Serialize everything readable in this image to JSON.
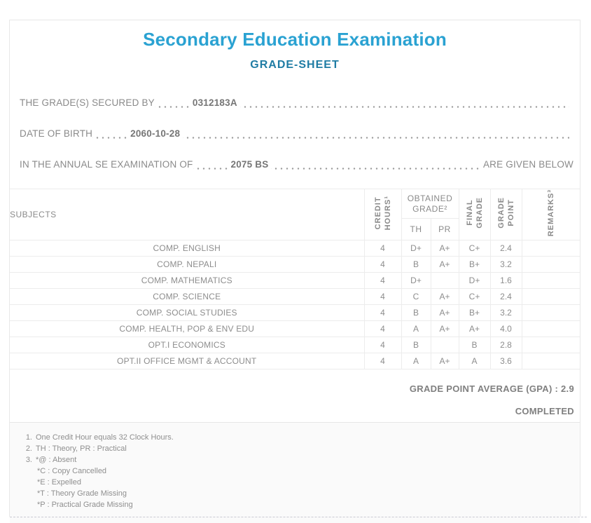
{
  "header": {
    "title": "Secondary Education Examination",
    "subtitle": "GRADE-SHEET"
  },
  "student_info": [
    {
      "label": "THE GRADE(S) SECURED BY",
      "value": "0312183A",
      "suffix": ""
    },
    {
      "label": "DATE OF BIRTH",
      "value": "2060-10-28",
      "suffix": ""
    },
    {
      "label": "IN THE ANNUAL SE EXAMINATION OF",
      "value": "2075 BS",
      "suffix": "ARE GIVEN BELOW"
    }
  ],
  "table": {
    "headers": {
      "subjects": "SUBJECTS",
      "credit_hours": "CREDIT\nHOURS¹",
      "obtained_grade": "OBTAINED\nGRADE²",
      "th": "TH",
      "pr": "PR",
      "final_grade": "FINAL\nGRADE",
      "grade_point": "GRADE\nPOINT",
      "remarks": "REMARKS³"
    },
    "rows": [
      {
        "subject": "COMP. ENGLISH",
        "credit": "4",
        "th": "D+",
        "pr": "A+",
        "final": "C+",
        "gp": "2.4",
        "remarks": ""
      },
      {
        "subject": "COMP. NEPALI",
        "credit": "4",
        "th": "B",
        "pr": "A+",
        "final": "B+",
        "gp": "3.2",
        "remarks": ""
      },
      {
        "subject": "COMP. MATHEMATICS",
        "credit": "4",
        "th": "D+",
        "pr": "",
        "final": "D+",
        "gp": "1.6",
        "remarks": ""
      },
      {
        "subject": "COMP. SCIENCE",
        "credit": "4",
        "th": "C",
        "pr": "A+",
        "final": "C+",
        "gp": "2.4",
        "remarks": ""
      },
      {
        "subject": "COMP. SOCIAL STUDIES",
        "credit": "4",
        "th": "B",
        "pr": "A+",
        "final": "B+",
        "gp": "3.2",
        "remarks": ""
      },
      {
        "subject": "COMP. HEALTH, POP & ENV EDU",
        "credit": "4",
        "th": "A",
        "pr": "A+",
        "final": "A+",
        "gp": "4.0",
        "remarks": ""
      },
      {
        "subject": "OPT.I ECONOMICS",
        "credit": "4",
        "th": "B",
        "pr": "",
        "final": "B",
        "gp": "2.8",
        "remarks": ""
      },
      {
        "subject": "OPT.II OFFICE MGMT & ACCOUNT",
        "credit": "4",
        "th": "A",
        "pr": "A+",
        "final": "A",
        "gp": "3.6",
        "remarks": ""
      }
    ]
  },
  "summary": {
    "gpa_label": "GRADE POINT AVERAGE (GPA) : 2.9",
    "status": "COMPLETED"
  },
  "notes": [
    {
      "num": "1.",
      "lines": [
        "One Credit Hour equals 32 Clock Hours."
      ]
    },
    {
      "num": "2.",
      "lines": [
        "TH : Theory, PR : Practical"
      ]
    },
    {
      "num": "3.",
      "lines": [
        "*@ : Absent",
        "*C : Copy Cancelled",
        "*E : Expelled",
        "*T : Theory Grade Missing",
        "*P : Practical Grade Missing"
      ]
    }
  ],
  "colors": {
    "title_accent": "#2aa2d2",
    "subtitle_accent": "#1f7ca4",
    "body_text": "#8a8a8a",
    "border": "#ececec",
    "notes_background": "#fafafa"
  }
}
